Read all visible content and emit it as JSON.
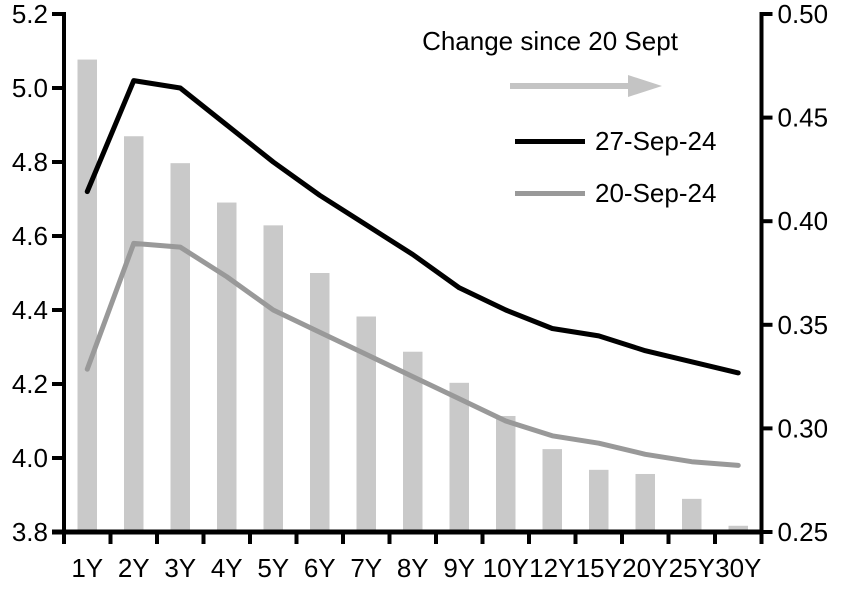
{
  "chart_data": {
    "type": "combo-bar-line",
    "categories": [
      "1Y",
      "2Y",
      "3Y",
      "4Y",
      "5Y",
      "6Y",
      "7Y",
      "8Y",
      "9Y",
      "10Y",
      "12Y",
      "15Y",
      "20Y",
      "25Y",
      "30Y"
    ],
    "series": [
      {
        "name": "Change since 20 Sept",
        "type": "bar",
        "axis": "right",
        "color": "#c9c9c9",
        "values": [
          0.478,
          0.441,
          0.428,
          0.409,
          0.398,
          0.375,
          0.354,
          0.337,
          0.322,
          0.306,
          0.29,
          0.28,
          0.278,
          0.266,
          0.253
        ]
      },
      {
        "name": "27-Sep-24",
        "type": "line",
        "axis": "left",
        "color": "#000000",
        "values": [
          4.72,
          5.02,
          5.0,
          4.9,
          4.8,
          4.71,
          4.63,
          4.55,
          4.46,
          4.4,
          4.35,
          4.33,
          4.29,
          4.26,
          4.23
        ]
      },
      {
        "name": "20-Sep-24",
        "type": "line",
        "axis": "left",
        "color": "#999999",
        "values": [
          4.24,
          4.58,
          4.57,
          4.49,
          4.4,
          4.34,
          4.28,
          4.22,
          4.16,
          4.1,
          4.06,
          4.04,
          4.01,
          3.99,
          3.98
        ]
      }
    ],
    "left_axis": {
      "min": 3.8,
      "max": 5.2,
      "tick_labels": [
        "5.2",
        "5.0",
        "4.8",
        "4.6",
        "4.4",
        "4.2",
        "4.0",
        "3.8"
      ],
      "tick_values": [
        5.2,
        5.0,
        4.8,
        4.6,
        4.4,
        4.2,
        4.0,
        3.8
      ]
    },
    "right_axis": {
      "min": 0.25,
      "max": 0.5,
      "tick_labels": [
        "0.50",
        "0.45",
        "0.40",
        "0.35",
        "0.30",
        "0.25"
      ],
      "tick_values": [
        0.5,
        0.45,
        0.4,
        0.35,
        0.3,
        0.25
      ]
    },
    "legend": {
      "title": "Change since 20 Sept",
      "arrow_icon": "right-arrow",
      "arrow_color": "#c4c4c4",
      "entries": [
        "27-Sep-24",
        "20-Sep-24"
      ]
    },
    "grid": false,
    "legend_position": "top-right-inside",
    "axis_color": "#000000"
  }
}
